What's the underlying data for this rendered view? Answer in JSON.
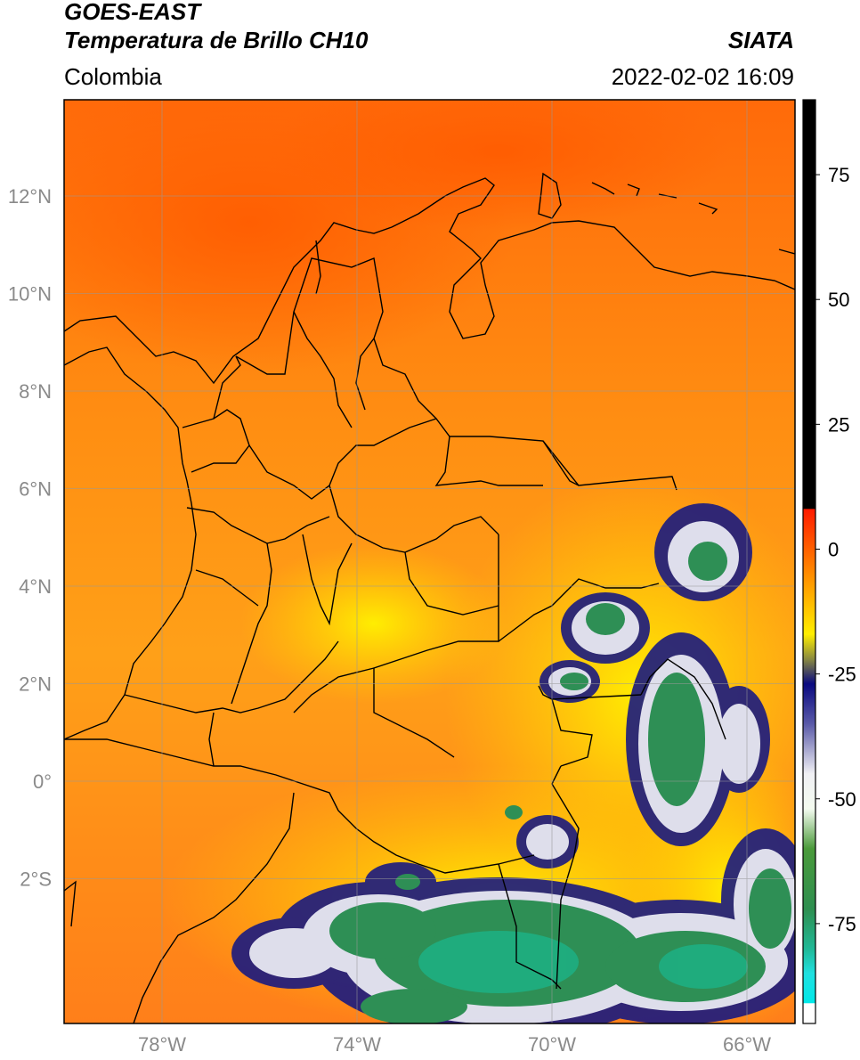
{
  "header": {
    "title_line1": "GOES-EAST",
    "title_line2": "Temperatura de Brillo CH10",
    "organization": "SIATA",
    "region": "Colombia",
    "datetime": "2022-02-02 16:09"
  },
  "map": {
    "lat_labels": [
      "12°N",
      "10°N",
      "8°N",
      "6°N",
      "4°N",
      "2°N",
      "0°",
      "2°S"
    ],
    "lon_labels": [
      "78°W",
      "74°W",
      "70°W",
      "66°W"
    ],
    "lat_values": [
      12,
      10,
      8,
      6,
      4,
      2,
      0,
      -2
    ],
    "lon_values": [
      -78,
      -74,
      -70,
      -66
    ]
  },
  "colorbar": {
    "tick_labels": [
      "75",
      "50",
      "25",
      "0",
      "-25",
      "-50",
      "-75"
    ],
    "tick_values": [
      75,
      50,
      25,
      0,
      -25,
      -50,
      -75
    ],
    "range": [
      -95,
      90
    ],
    "stops": [
      {
        "value": 90,
        "color": "#000000"
      },
      {
        "value": 8.1,
        "color": "#000000"
      },
      {
        "value": 8,
        "color": "#ff1a00"
      },
      {
        "value": -5,
        "color": "#ff8c00"
      },
      {
        "value": -17,
        "color": "#ffee00"
      },
      {
        "value": -22,
        "color": "#8a8a40"
      },
      {
        "value": -27,
        "color": "#0a0a80"
      },
      {
        "value": -35,
        "color": "#5a5aa8"
      },
      {
        "value": -45,
        "color": "#f0f0f4"
      },
      {
        "value": -52,
        "color": "#f4fbf0"
      },
      {
        "value": -60,
        "color": "#4a9a3a"
      },
      {
        "value": -72,
        "color": "#2e8f50"
      },
      {
        "value": -80,
        "color": "#20b896"
      },
      {
        "value": -85,
        "color": "#20e0e0"
      },
      {
        "value": -90.9,
        "color": "#00e8e8"
      },
      {
        "value": -91,
        "color": "#ffffff"
      },
      {
        "value": -95,
        "color": "#ffffff"
      }
    ]
  }
}
